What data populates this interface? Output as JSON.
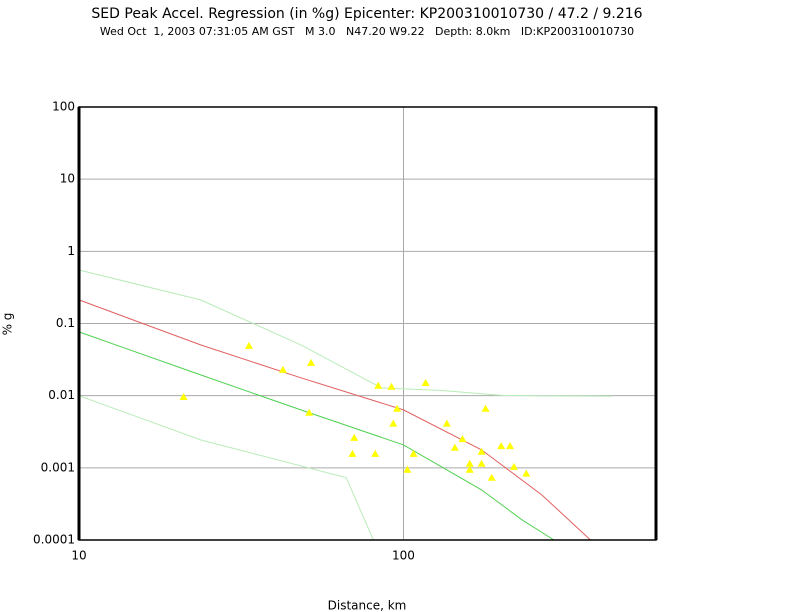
{
  "chart_data": {
    "type": "scatter",
    "title": "SED Peak Accel. Regression (in %g) Epicenter: KP200310010730 / 47.2 / 9.216",
    "subtitle": "Wed Oct  1, 2003 07:31:05 AM GST   M 3.0   N47.20 W9.22   Depth: 8.0km   ID:KP200310010730",
    "xlabel": "Distance, km",
    "ylabel": "% g",
    "xscale": "log",
    "yscale": "log",
    "grid": true,
    "xlim": [
      10,
      600
    ],
    "ylim": [
      0.0001,
      100
    ],
    "xticks": [
      10,
      100
    ],
    "yticks": [
      100,
      10,
      1,
      0.1,
      0.01,
      0.001,
      0.0001
    ],
    "color": "#ffff00",
    "x": [
      21.0,
      33.4,
      42.5,
      51.9,
      51.2,
      70.5,
      69.6,
      81.8,
      83.6,
      91.8,
      95.6,
      93.0,
      102.8,
      107.4,
      117,
      136,
      144,
      152,
      160,
      160,
      174,
      174,
      179,
      187,
      200,
      213,
      219,
      239
    ],
    "values": [
      0.0096,
      0.049,
      0.0228,
      0.0285,
      0.0058,
      0.0026,
      0.00156,
      0.00156,
      0.0137,
      0.0133,
      0.0066,
      0.0041,
      0.00094,
      0.00156,
      0.015,
      0.0041,
      0.0019,
      0.0025,
      0.00114,
      0.00094,
      0.00167,
      0.00114,
      0.0066,
      0.00073,
      0.002,
      0.002,
      0.00103,
      0.00083
    ],
    "lines": [
      {
        "color": "#e06060",
        "x": [
          10,
          23.7,
          48.3,
          100,
          174,
          267,
          377
        ],
        "values": [
          0.212,
          0.0506,
          0.0177,
          0.00636,
          0.00177,
          0.00042,
          0.0001
        ]
      },
      {
        "color": "#50d050",
        "x": [
          10,
          23.7,
          48.3,
          100,
          174,
          232,
          291
        ],
        "values": [
          0.0766,
          0.0194,
          0.00636,
          0.00208,
          0.000495,
          0.00019,
          0.0001
        ]
      },
      {
        "color": "#b8ecb8",
        "x": [
          10,
          23.7,
          48.3,
          85.5,
          131,
          201,
          440
        ],
        "values": [
          0.552,
          0.212,
          0.0506,
          0.0128,
          0.0118,
          0.0101,
          0.0098
        ]
      },
      {
        "color": "#b8ecb8",
        "x": [
          10,
          23.7,
          66.6,
          80.8
        ],
        "values": [
          0.01,
          0.00244,
          0.00073,
          0.0001
        ]
      }
    ]
  }
}
